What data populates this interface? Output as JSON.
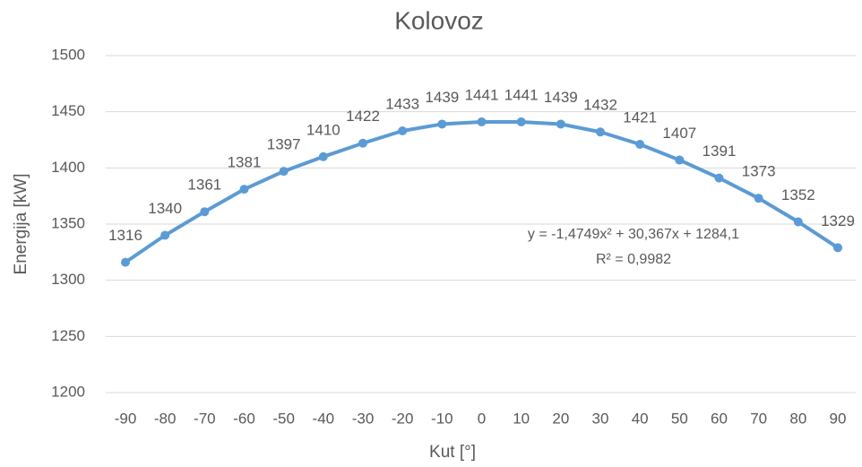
{
  "chart_data": {
    "type": "line",
    "title": "Kolovoz",
    "x_label": "Kut [°]",
    "y_label": "Energija [kW]",
    "x": [
      -90,
      -80,
      -70,
      -60,
      -50,
      -40,
      -30,
      -20,
      -10,
      0,
      10,
      20,
      30,
      40,
      50,
      60,
      70,
      80,
      90
    ],
    "series": [
      {
        "name": "Kolovoz",
        "color": "#5b9bd5",
        "values": [
          1316,
          1340,
          1361,
          1381,
          1397,
          1410,
          1422,
          1433,
          1439,
          1441,
          1441,
          1439,
          1432,
          1421,
          1407,
          1391,
          1373,
          1352,
          1329
        ]
      }
    ],
    "xlim": [
      -90,
      90
    ],
    "xticks": [
      -90,
      -80,
      -70,
      -60,
      -50,
      -40,
      -30,
      -20,
      -10,
      0,
      10,
      20,
      30,
      40,
      50,
      60,
      70,
      80,
      90
    ],
    "ylim": [
      1200,
      1500
    ],
    "yticks": [
      1200,
      1250,
      1300,
      1350,
      1400,
      1450,
      1500
    ],
    "grid": true,
    "annotations": [
      "y = -1,4749x² + 30,367x + 1284,1",
      "R² = 0,9982"
    ]
  }
}
